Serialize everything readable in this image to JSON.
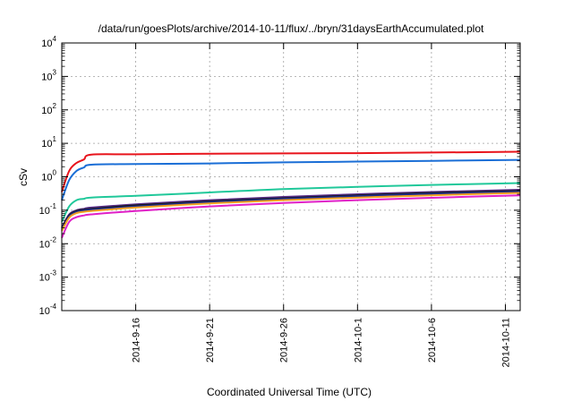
{
  "chart_data": {
    "type": "line",
    "title": "/data/run/goesPlots/archive/2014-10-11/flux/../bryn/31daysEarthAccumulated.plot",
    "xlabel": "Coordinated Universal Time (UTC)",
    "ylabel": "cSv",
    "yscale": "log",
    "ylim": [
      0.0001,
      10000
    ],
    "xlim": [
      "2014-09-11",
      "2014-10-12"
    ],
    "y_ticks": [
      {
        "base": "10",
        "exp": "-4",
        "value": 0.0001
      },
      {
        "base": "10",
        "exp": "-3",
        "value": 0.001
      },
      {
        "base": "10",
        "exp": "-2",
        "value": 0.01
      },
      {
        "base": "10",
        "exp": "-1",
        "value": 0.1
      },
      {
        "base": "10",
        "exp": "0",
        "value": 1
      },
      {
        "base": "10",
        "exp": "1",
        "value": 10
      },
      {
        "base": "10",
        "exp": "2",
        "value": 100
      },
      {
        "base": "10",
        "exp": "3",
        "value": 1000
      },
      {
        "base": "10",
        "exp": "4",
        "value": 10000
      }
    ],
    "x_ticks": [
      {
        "label": "2014-9-16",
        "date": "2014-09-16"
      },
      {
        "label": "2014-9-21",
        "date": "2014-09-21"
      },
      {
        "label": "2014-9-26",
        "date": "2014-09-26"
      },
      {
        "label": "2014-10-1",
        "date": "2014-10-01"
      },
      {
        "label": "2014-10-6",
        "date": "2014-10-06"
      },
      {
        "label": "2014-10-11",
        "date": "2014-10-11"
      }
    ],
    "grid": true,
    "series": [
      {
        "color": "#e8141c",
        "x": [
          "2014-09-11",
          "2014-09-11T12:00",
          "2014-09-12",
          "2014-09-12T12:00",
          "2014-09-13",
          "2014-09-16",
          "2014-09-21",
          "2014-09-26",
          "2014-10-01",
          "2014-10-06",
          "2014-10-12"
        ],
        "y": [
          0.35,
          1.5,
          2.6,
          3.3,
          4.6,
          4.7,
          4.9,
          5.0,
          5.1,
          5.3,
          5.6
        ]
      },
      {
        "color": "#1a6ed6",
        "x": [
          "2014-09-11",
          "2014-09-11T12:00",
          "2014-09-12",
          "2014-09-12T12:00",
          "2014-09-13",
          "2014-09-16",
          "2014-09-21",
          "2014-09-26",
          "2014-10-01",
          "2014-10-06",
          "2014-10-12"
        ],
        "y": [
          0.2,
          0.8,
          1.5,
          1.9,
          2.3,
          2.4,
          2.5,
          2.7,
          2.85,
          3.0,
          3.2
        ]
      },
      {
        "color": "#20c89a",
        "x": [
          "2014-09-11",
          "2014-09-11T12:00",
          "2014-09-12",
          "2014-09-12T12:00",
          "2014-09-13",
          "2014-09-16",
          "2014-09-21",
          "2014-09-26",
          "2014-10-01",
          "2014-10-06",
          "2014-10-12"
        ],
        "y": [
          0.045,
          0.13,
          0.2,
          0.22,
          0.24,
          0.27,
          0.34,
          0.43,
          0.5,
          0.57,
          0.65
        ]
      },
      {
        "color": "#5a2d8e",
        "x": [
          "2014-09-11",
          "2014-09-11T12:00",
          "2014-09-12",
          "2014-09-12T12:00",
          "2014-09-13",
          "2014-09-16",
          "2014-09-21",
          "2014-09-26",
          "2014-10-01",
          "2014-10-06",
          "2014-10-12"
        ],
        "y": [
          0.03,
          0.075,
          0.1,
          0.11,
          0.12,
          0.15,
          0.2,
          0.25,
          0.3,
          0.35,
          0.41
        ]
      },
      {
        "color": "#1c1c1c",
        "x": [
          "2014-09-11",
          "2014-09-11T12:00",
          "2014-09-12",
          "2014-09-12T12:00",
          "2014-09-13",
          "2014-09-16",
          "2014-09-21",
          "2014-09-26",
          "2014-10-01",
          "2014-10-06",
          "2014-10-12"
        ],
        "y": [
          0.028,
          0.07,
          0.095,
          0.105,
          0.11,
          0.14,
          0.185,
          0.23,
          0.28,
          0.33,
          0.38
        ]
      },
      {
        "color": "#1a2a8a",
        "x": [
          "2014-09-11",
          "2014-09-11T12:00",
          "2014-09-12",
          "2014-09-12T12:00",
          "2014-09-13",
          "2014-09-16",
          "2014-09-21",
          "2014-09-26",
          "2014-10-01",
          "2014-10-06",
          "2014-10-12"
        ],
        "y": [
          0.026,
          0.066,
          0.09,
          0.1,
          0.105,
          0.13,
          0.175,
          0.22,
          0.265,
          0.31,
          0.36
        ]
      },
      {
        "color": "#f0a020",
        "x": [
          "2014-09-11",
          "2014-09-11T12:00",
          "2014-09-12",
          "2014-09-12T12:00",
          "2014-09-13",
          "2014-09-16",
          "2014-09-21",
          "2014-09-26",
          "2014-10-01",
          "2014-10-06",
          "2014-10-12"
        ],
        "y": [
          0.024,
          0.06,
          0.082,
          0.09,
          0.095,
          0.12,
          0.16,
          0.2,
          0.24,
          0.28,
          0.33
        ]
      },
      {
        "color": "#e020c8",
        "x": [
          "2014-09-11",
          "2014-09-11T12:00",
          "2014-09-12",
          "2014-09-12T12:00",
          "2014-09-13",
          "2014-09-16",
          "2014-09-21",
          "2014-09-26",
          "2014-10-01",
          "2014-10-06",
          "2014-10-12"
        ],
        "y": [
          0.015,
          0.045,
          0.062,
          0.07,
          0.075,
          0.095,
          0.13,
          0.165,
          0.2,
          0.235,
          0.28
        ]
      }
    ]
  }
}
